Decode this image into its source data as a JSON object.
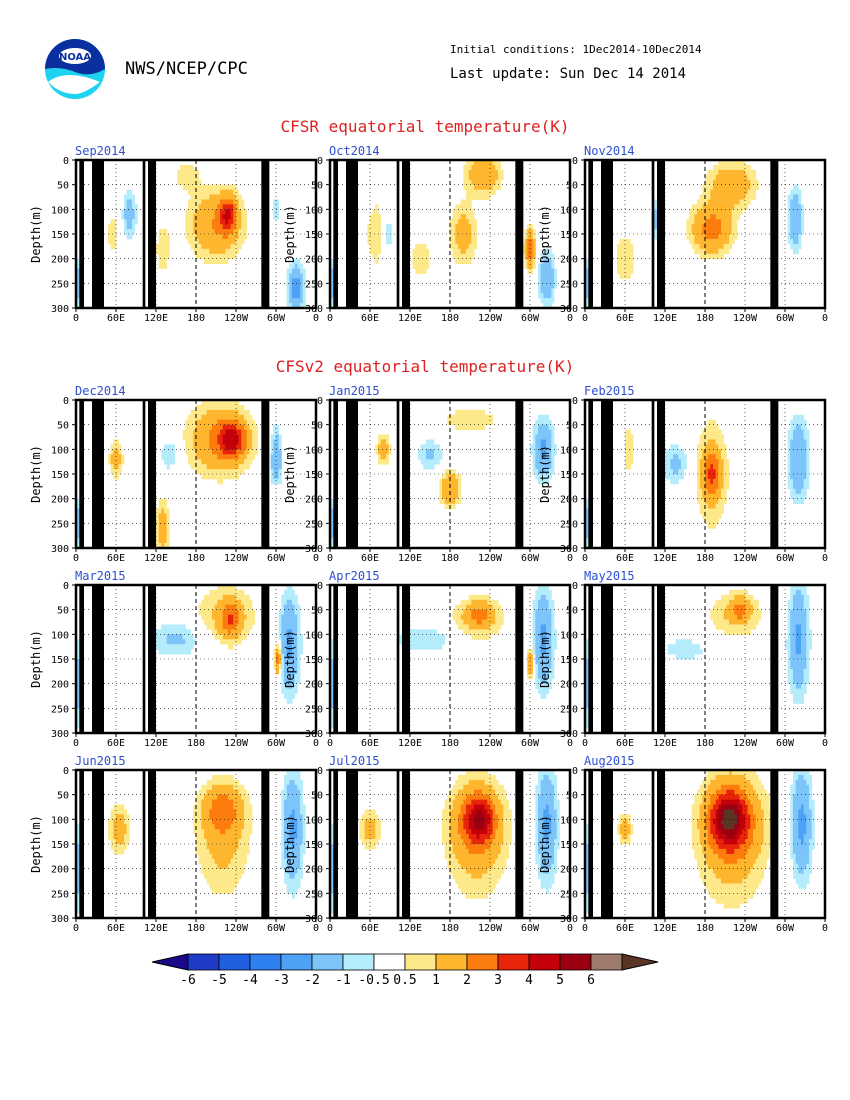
{
  "header": {
    "agency": "NWS/NCEP/CPC",
    "initial_conditions": "Initial conditions: 1Dec2014-10Dec2014",
    "last_update": "Last update: Sun Dec 14 2014",
    "logo_text": "NOAA"
  },
  "sections": {
    "cfsr_title": "CFSR equatorial temperature(K)",
    "cfsv2_title": "CFSv2 equatorial temperature(K)"
  },
  "colors": {
    "title_red": "#dd2222",
    "panel_title_blue": "#2d4fcf",
    "land": "#000000"
  },
  "chart_data": {
    "type": "heatmap",
    "variable": "equatorial temperature anomaly (K)",
    "ylabel": "Depth(m)",
    "yticks": [
      "0",
      "50",
      "100",
      "150",
      "200",
      "250",
      "300"
    ],
    "ylim": [
      0,
      300
    ],
    "xticks": [
      "0",
      "60E",
      "120E",
      "180",
      "120W",
      "60W",
      "0"
    ],
    "xlim": [
      0,
      360
    ],
    "grid": "dotted",
    "land_bands_lon": [
      [
        5,
        12
      ],
      [
        24,
        42
      ],
      [
        100,
        104
      ],
      [
        108,
        120
      ],
      [
        278,
        290
      ]
    ],
    "dateline_lon": 180,
    "panels": [
      {
        "title": "Sep2014",
        "section": "cfsr",
        "blobs": [
          {
            "lon": 4,
            "depth": 250,
            "rl": 4,
            "rd": 50,
            "v": -2
          },
          {
            "lon": 55,
            "depth": 150,
            "rl": 8,
            "rd": 40,
            "v": 1
          },
          {
            "lon": 80,
            "depth": 110,
            "rl": 10,
            "rd": 50,
            "v": -1.5
          },
          {
            "lon": 130,
            "depth": 180,
            "rl": 12,
            "rd": 60,
            "v": 0.8
          },
          {
            "lon": 165,
            "depth": 30,
            "rl": 20,
            "rd": 30,
            "v": 0.8
          },
          {
            "lon": 210,
            "depth": 130,
            "rl": 40,
            "rd": 70,
            "v": 2
          },
          {
            "lon": 228,
            "depth": 110,
            "rl": 12,
            "rd": 35,
            "v": 3
          },
          {
            "lon": 300,
            "depth": 100,
            "rl": 6,
            "rd": 30,
            "v": -1
          },
          {
            "lon": 330,
            "depth": 260,
            "rl": 12,
            "rd": 50,
            "v": -2.5
          }
        ]
      },
      {
        "title": "Oct2014",
        "section": "cfsr",
        "blobs": [
          {
            "lon": 4,
            "depth": 250,
            "rl": 4,
            "rd": 50,
            "v": -2
          },
          {
            "lon": 70,
            "depth": 150,
            "rl": 15,
            "rd": 70,
            "v": 1
          },
          {
            "lon": 85,
            "depth": 150,
            "rl": 10,
            "rd": 50,
            "v": -1
          },
          {
            "lon": 135,
            "depth": 200,
            "rl": 15,
            "rd": 40,
            "v": 1
          },
          {
            "lon": 200,
            "depth": 150,
            "rl": 20,
            "rd": 60,
            "v": 1.5
          },
          {
            "lon": 230,
            "depth": 30,
            "rl": 25,
            "rd": 40,
            "v": 2
          },
          {
            "lon": 300,
            "depth": 180,
            "rl": 8,
            "rd": 40,
            "v": 2.5
          },
          {
            "lon": 325,
            "depth": 240,
            "rl": 12,
            "rd": 50,
            "v": -2
          }
        ]
      },
      {
        "title": "Nov2014",
        "section": "cfsr",
        "blobs": [
          {
            "lon": 4,
            "depth": 250,
            "rl": 4,
            "rd": 50,
            "v": -2
          },
          {
            "lon": 60,
            "depth": 200,
            "rl": 20,
            "rd": 60,
            "v": 0.8
          },
          {
            "lon": 110,
            "depth": 120,
            "rl": 8,
            "rd": 40,
            "v": -1.5
          },
          {
            "lon": 190,
            "depth": 140,
            "rl": 30,
            "rd": 50,
            "v": 2.5
          },
          {
            "lon": 220,
            "depth": 50,
            "rl": 35,
            "rd": 45,
            "v": 1.8
          },
          {
            "lon": 315,
            "depth": 120,
            "rl": 10,
            "rd": 60,
            "v": -2
          }
        ]
      },
      {
        "title": "Dec2014",
        "section": "cfsv2",
        "blobs": [
          {
            "lon": 4,
            "depth": 250,
            "rl": 4,
            "rd": 50,
            "v": -2
          },
          {
            "lon": 60,
            "depth": 120,
            "rl": 10,
            "rd": 40,
            "v": 1.5
          },
          {
            "lon": 130,
            "depth": 260,
            "rl": 10,
            "rd": 60,
            "v": 1.5
          },
          {
            "lon": 140,
            "depth": 110,
            "rl": 15,
            "rd": 35,
            "v": -1
          },
          {
            "lon": 215,
            "depth": 80,
            "rl": 45,
            "rd": 70,
            "v": 2.2
          },
          {
            "lon": 235,
            "depth": 80,
            "rl": 20,
            "rd": 35,
            "v": 3
          },
          {
            "lon": 300,
            "depth": 120,
            "rl": 8,
            "rd": 60,
            "v": -2
          },
          {
            "lon": 300,
            "depth": 200,
            "rl": 8,
            "rd": 30,
            "v": 0.8
          }
        ]
      },
      {
        "title": "Mar2015",
        "section": "cfsv2",
        "blobs": [
          {
            "lon": 4,
            "depth": 200,
            "rl": 4,
            "rd": 80,
            "v": -2
          },
          {
            "lon": 150,
            "depth": 110,
            "rl": 40,
            "rd": 35,
            "v": -1.2
          },
          {
            "lon": 225,
            "depth": 60,
            "rl": 45,
            "rd": 60,
            "v": 1.2
          },
          {
            "lon": 232,
            "depth": 70,
            "rl": 15,
            "rd": 35,
            "v": 2
          },
          {
            "lon": 320,
            "depth": 120,
            "rl": 15,
            "rd": 100,
            "v": -2.2
          },
          {
            "lon": 303,
            "depth": 150,
            "rl": 5,
            "rd": 30,
            "v": 3
          }
        ]
      },
      {
        "title": "Jun2015",
        "section": "cfsv2",
        "blobs": [
          {
            "lon": 4,
            "depth": 200,
            "rl": 4,
            "rd": 80,
            "v": -2
          },
          {
            "lon": 65,
            "depth": 120,
            "rl": 15,
            "rd": 50,
            "v": 1.5
          },
          {
            "lon": 220,
            "depth": 150,
            "rl": 40,
            "rd": 110,
            "v": 1.2
          },
          {
            "lon": 220,
            "depth": 80,
            "rl": 30,
            "rd": 50,
            "v": 2
          },
          {
            "lon": 325,
            "depth": 120,
            "rl": 15,
            "rd": 110,
            "v": -2.3
          }
        ]
      },
      {
        "title": "Jan2015",
        "section": "cfsv2",
        "blobs": [
          {
            "lon": 4,
            "depth": 250,
            "rl": 4,
            "rd": 50,
            "v": -2
          },
          {
            "lon": 80,
            "depth": 100,
            "rl": 10,
            "rd": 30,
            "v": 1.5
          },
          {
            "lon": 150,
            "depth": 110,
            "rl": 20,
            "rd": 30,
            "v": -1.2
          },
          {
            "lon": 180,
            "depth": 180,
            "rl": 15,
            "rd": 35,
            "v": 2
          },
          {
            "lon": 210,
            "depth": 40,
            "rl": 50,
            "rd": 30,
            "v": 0.8
          },
          {
            "lon": 320,
            "depth": 100,
            "rl": 15,
            "rd": 60,
            "v": -2.2
          }
        ]
      },
      {
        "title": "Apr2015",
        "section": "cfsv2",
        "blobs": [
          {
            "lon": 4,
            "depth": 200,
            "rl": 4,
            "rd": 80,
            "v": -2
          },
          {
            "lon": 140,
            "depth": 110,
            "rl": 50,
            "rd": 30,
            "v": -1
          },
          {
            "lon": 220,
            "depth": 70,
            "rl": 45,
            "rd": 50,
            "v": 1
          },
          {
            "lon": 225,
            "depth": 60,
            "rl": 20,
            "rd": 25,
            "v": 1.6
          },
          {
            "lon": 300,
            "depth": 160,
            "rl": 5,
            "rd": 30,
            "v": 2.5
          },
          {
            "lon": 320,
            "depth": 110,
            "rl": 15,
            "rd": 100,
            "v": -2.2
          }
        ]
      },
      {
        "title": "Jul2015",
        "section": "cfsv2",
        "blobs": [
          {
            "lon": 4,
            "depth": 200,
            "rl": 4,
            "rd": 80,
            "v": -2
          },
          {
            "lon": 60,
            "depth": 120,
            "rl": 15,
            "rd": 40,
            "v": 1.5
          },
          {
            "lon": 220,
            "depth": 150,
            "rl": 45,
            "rd": 120,
            "v": 1.2
          },
          {
            "lon": 220,
            "depth": 100,
            "rl": 35,
            "rd": 70,
            "v": 2
          },
          {
            "lon": 225,
            "depth": 100,
            "rl": 20,
            "rd": 40,
            "v": 2.8
          },
          {
            "lon": 325,
            "depth": 110,
            "rl": 15,
            "rd": 110,
            "v": -2.3
          }
        ]
      },
      {
        "title": "Feb2015",
        "section": "cfsv2",
        "blobs": [
          {
            "lon": 4,
            "depth": 250,
            "rl": 4,
            "rd": 50,
            "v": -2
          },
          {
            "lon": 65,
            "depth": 100,
            "rl": 8,
            "rd": 50,
            "v": 1
          },
          {
            "lon": 135,
            "depth": 130,
            "rl": 20,
            "rd": 40,
            "v": -1.2
          },
          {
            "lon": 190,
            "depth": 150,
            "rl": 25,
            "rd": 110,
            "v": 1.3
          },
          {
            "lon": 190,
            "depth": 150,
            "rl": 12,
            "rd": 40,
            "v": 2.2
          },
          {
            "lon": 320,
            "depth": 120,
            "rl": 15,
            "rd": 80,
            "v": -2
          }
        ]
      },
      {
        "title": "May2015",
        "section": "cfsv2",
        "blobs": [
          {
            "lon": 4,
            "depth": 200,
            "rl": 4,
            "rd": 80,
            "v": -2
          },
          {
            "lon": 150,
            "depth": 130,
            "rl": 40,
            "rd": 25,
            "v": -0.8
          },
          {
            "lon": 225,
            "depth": 60,
            "rl": 45,
            "rd": 50,
            "v": 1
          },
          {
            "lon": 232,
            "depth": 50,
            "rl": 15,
            "rd": 25,
            "v": 1.6
          },
          {
            "lon": 320,
            "depth": 110,
            "rl": 15,
            "rd": 110,
            "v": -2.2
          }
        ]
      },
      {
        "title": "Aug2015",
        "section": "cfsv2",
        "blobs": [
          {
            "lon": 4,
            "depth": 200,
            "rl": 4,
            "rd": 80,
            "v": -2
          },
          {
            "lon": 60,
            "depth": 120,
            "rl": 10,
            "rd": 30,
            "v": 1.5
          },
          {
            "lon": 220,
            "depth": 150,
            "rl": 50,
            "rd": 130,
            "v": 1.3
          },
          {
            "lon": 220,
            "depth": 100,
            "rl": 40,
            "rd": 80,
            "v": 2.2
          },
          {
            "lon": 215,
            "depth": 100,
            "rl": 25,
            "rd": 50,
            "v": 3.5
          },
          {
            "lon": 325,
            "depth": 110,
            "rl": 15,
            "rd": 110,
            "v": -2.3
          }
        ]
      }
    ],
    "colorbar": {
      "labels": [
        "-6",
        "-5",
        "-4",
        "-3",
        "-2",
        "-1",
        "-0.5",
        "0.5",
        "1",
        "2",
        "3",
        "4",
        "5",
        "6"
      ],
      "bounds": [
        -6,
        -5,
        -4,
        -3,
        -2,
        -1,
        -0.5,
        0.5,
        1,
        2,
        3,
        4,
        5,
        6
      ],
      "colors": [
        "#1a0a8a",
        "#1e3cc8",
        "#1f5fe0",
        "#2f80f0",
        "#4da2f5",
        "#7cc4fa",
        "#b4ecfb",
        "#ffffff",
        "#fde98a",
        "#fdb62e",
        "#fd7c0e",
        "#e8250a",
        "#c4000a",
        "#9a0012",
        "#9e7b6c",
        "#5a3526"
      ]
    }
  }
}
